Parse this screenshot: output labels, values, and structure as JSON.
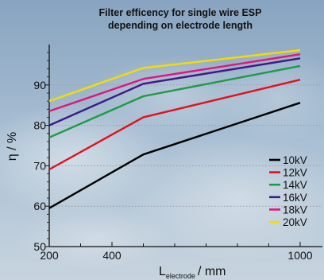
{
  "colors": {
    "10kV": "#000000",
    "12kV": "#e3101e",
    "14kV": "#1e9a46",
    "16kV": "#3c1a87",
    "18kV": "#e1157a",
    "20kV": "#f5dc00"
  },
  "chart_data": {
    "type": "line",
    "title_line1": "Filter efficency for single wire ESP",
    "title_line2": "depending on electrode length",
    "xlabel_main": "L",
    "xlabel_sub": "electrode",
    "xlabel_tail": "/ mm",
    "ylabel": "η / %",
    "xlim": [
      200,
      1000
    ],
    "ylim": [
      50,
      100
    ],
    "xticks": [
      200,
      400,
      1000
    ],
    "yticks": [
      50,
      60,
      70,
      80,
      90
    ],
    "grid": true,
    "legend_position": "bottom-right",
    "x": [
      200,
      500,
      1000
    ],
    "series": [
      {
        "name": "10kV",
        "color": "#000000",
        "values": [
          59.5,
          72.8,
          85.6
        ]
      },
      {
        "name": "12kV",
        "color": "#e3101e",
        "values": [
          69.1,
          82.0,
          91.3
        ]
      },
      {
        "name": "14kV",
        "color": "#1e9a46",
        "values": [
          77.0,
          87.2,
          94.7
        ]
      },
      {
        "name": "16kV",
        "color": "#3c1a87",
        "values": [
          80.0,
          90.3,
          96.6
        ]
      },
      {
        "name": "18kV",
        "color": "#e1157a",
        "values": [
          83.5,
          91.5,
          97.6
        ]
      },
      {
        "name": "20kV",
        "color": "#f5dc00",
        "values": [
          86.0,
          94.2,
          98.6
        ]
      }
    ]
  }
}
